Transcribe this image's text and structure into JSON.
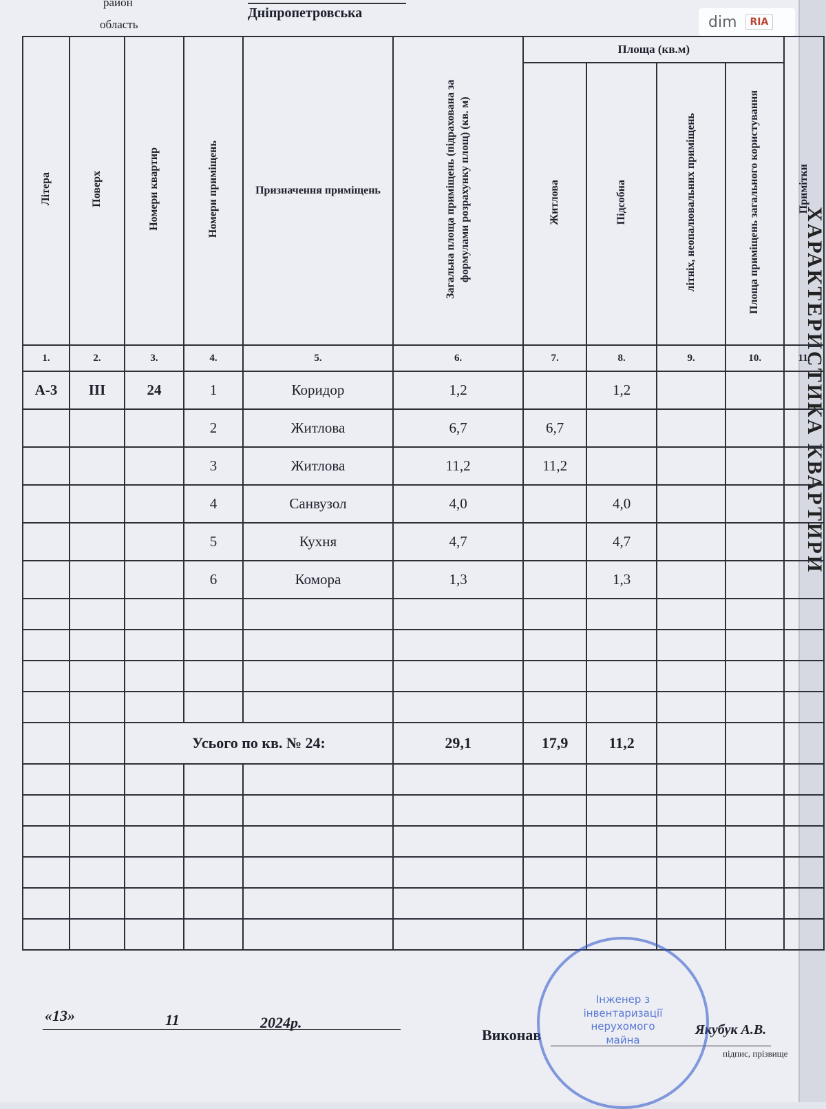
{
  "header": {
    "rayon": "район",
    "oblast": "область",
    "region": "Дніпропетровська",
    "watermark": [
      "dim",
      "RIA"
    ],
    "side_title": "ХАРАКТЕРИСТИКА КВАРТИРИ"
  },
  "table": {
    "group_header": "Площа (кв.м)",
    "columns": [
      "Літера",
      "Поверх",
      "Номери квартир",
      "Номери приміщень",
      "Призначення приміщень",
      "Загальна площа приміщень (підрахована за формулами розрахунку площ) (кв. м)",
      "Житлова",
      "Підсобна",
      "літніх, неопалювальних приміщень",
      "Площа приміщень загального користування",
      "Примітки"
    ],
    "numbers": [
      "1.",
      "2.",
      "3.",
      "4.",
      "5.",
      "6.",
      "7.",
      "8.",
      "9.",
      "10.",
      "11."
    ],
    "rows": [
      [
        "А-3",
        "ІІІ",
        "24",
        "1",
        "Коридор",
        "1,2",
        null,
        "1,2",
        null,
        null,
        null
      ],
      [
        null,
        null,
        null,
        "2",
        "Житлова",
        "6,7",
        "6,7",
        null,
        null,
        null,
        null
      ],
      [
        null,
        null,
        null,
        "3",
        "Житлова",
        "11,2",
        "11,2",
        null,
        null,
        null,
        null
      ],
      [
        null,
        null,
        null,
        "4",
        "Санвузол",
        "4,0",
        null,
        "4,0",
        null,
        null,
        null
      ],
      [
        null,
        null,
        null,
        "5",
        "Кухня",
        "4,7",
        null,
        "4,7",
        null,
        null,
        null
      ],
      [
        null,
        null,
        null,
        "6",
        "Комора",
        "1,3",
        null,
        "1,3",
        null,
        null,
        null
      ]
    ],
    "total": {
      "label": "Усього по кв. № 24:",
      "values": [
        "29,1",
        "17,9",
        "11,2"
      ]
    }
  },
  "footer": {
    "day": "«13»",
    "month": "11",
    "year": "2024р.",
    "performed": "Виконав",
    "signer": "Якубук А.В.",
    "caption": "підпис, прізвище"
  },
  "stamp": [
    "Інженер з",
    "інвентаризації",
    "нерухомого",
    "майна"
  ]
}
